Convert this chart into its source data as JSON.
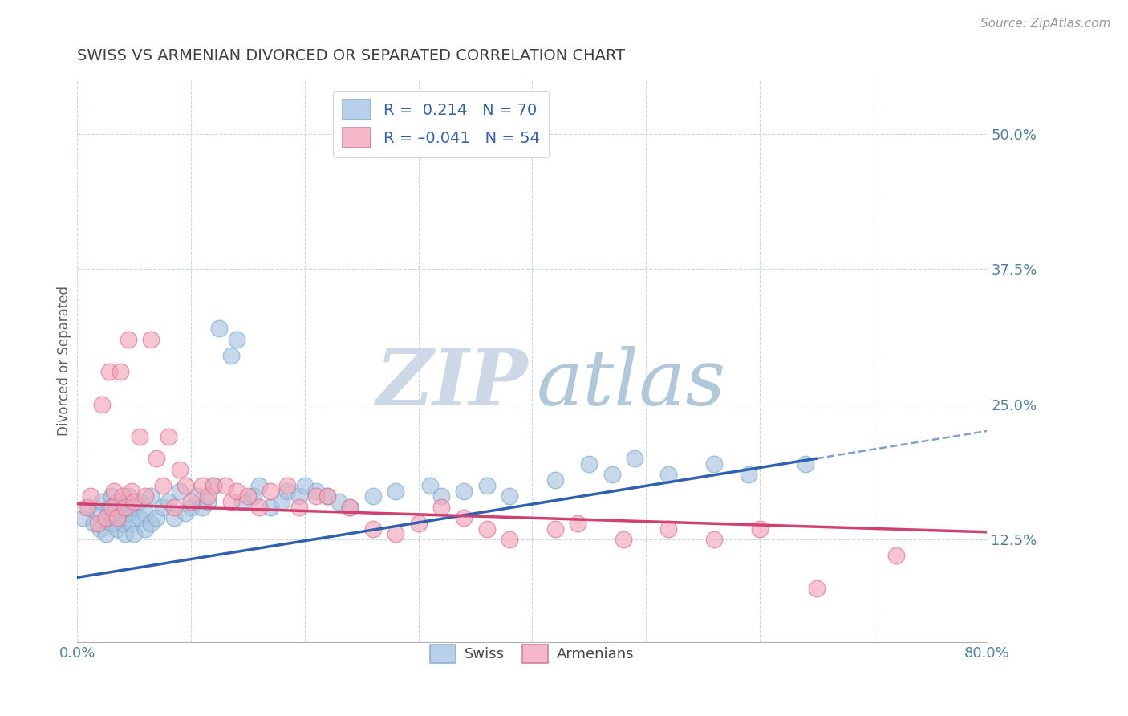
{
  "title": "SWISS VS ARMENIAN DIVORCED OR SEPARATED CORRELATION CHART",
  "source": "Source: ZipAtlas.com",
  "ylabel": "Divorced or Separated",
  "xlim": [
    0.0,
    0.8
  ],
  "ylim": [
    0.03,
    0.55
  ],
  "xtick_positions": [
    0.0,
    0.1,
    0.2,
    0.3,
    0.4,
    0.5,
    0.6,
    0.7,
    0.8
  ],
  "xticklabels": [
    "0.0%",
    "",
    "",
    "",
    "",
    "",
    "",
    "",
    "80.0%"
  ],
  "ytick_positions": [
    0.125,
    0.25,
    0.375,
    0.5
  ],
  "ytick_labels": [
    "12.5%",
    "25.0%",
    "37.5%",
    "50.0%"
  ],
  "swiss_color": "#a8c4e0",
  "swiss_edge_color": "#7aaacf",
  "armenian_color": "#f4a7b9",
  "armenian_edge_color": "#e07090",
  "swiss_line_color": "#3060b0",
  "armenian_line_color": "#d04070",
  "legend_box_swiss_color": "#b8d0ea",
  "legend_box_armenian_color": "#f4b8c8",
  "watermark_zip_color": "#ccd8e8",
  "watermark_atlas_color": "#b0c8d8",
  "background_color": "#ffffff",
  "grid_color": "#c8d8e8",
  "title_color": "#404040",
  "tick_label_color": "#5080a0",
  "swiss_line_start_y": 0.09,
  "swiss_line_end_y": 0.2,
  "swiss_line_end_x": 0.65,
  "armenian_line_start_y": 0.158,
  "armenian_line_end_y": 0.132,
  "swiss_R": 0.214,
  "swiss_N": 70,
  "armenian_R": -0.041,
  "armenian_N": 54,
  "swiss_scatter_x": [
    0.005,
    0.01,
    0.015,
    0.018,
    0.02,
    0.022,
    0.025,
    0.025,
    0.028,
    0.03,
    0.03,
    0.032,
    0.035,
    0.035,
    0.038,
    0.04,
    0.04,
    0.042,
    0.045,
    0.045,
    0.048,
    0.05,
    0.05,
    0.055,
    0.055,
    0.06,
    0.06,
    0.065,
    0.065,
    0.07,
    0.075,
    0.08,
    0.085,
    0.09,
    0.095,
    0.1,
    0.105,
    0.11,
    0.115,
    0.12,
    0.125,
    0.135,
    0.14,
    0.145,
    0.155,
    0.16,
    0.17,
    0.18,
    0.185,
    0.195,
    0.2,
    0.21,
    0.22,
    0.23,
    0.24,
    0.26,
    0.28,
    0.31,
    0.32,
    0.34,
    0.36,
    0.38,
    0.42,
    0.45,
    0.47,
    0.49,
    0.52,
    0.56,
    0.59,
    0.64
  ],
  "swiss_scatter_y": [
    0.145,
    0.155,
    0.14,
    0.15,
    0.135,
    0.16,
    0.145,
    0.13,
    0.155,
    0.14,
    0.165,
    0.15,
    0.135,
    0.16,
    0.145,
    0.14,
    0.155,
    0.13,
    0.15,
    0.165,
    0.14,
    0.155,
    0.13,
    0.145,
    0.16,
    0.135,
    0.15,
    0.14,
    0.165,
    0.145,
    0.155,
    0.16,
    0.145,
    0.17,
    0.15,
    0.155,
    0.165,
    0.155,
    0.16,
    0.175,
    0.32,
    0.295,
    0.31,
    0.16,
    0.165,
    0.175,
    0.155,
    0.16,
    0.17,
    0.165,
    0.175,
    0.17,
    0.165,
    0.16,
    0.155,
    0.165,
    0.17,
    0.175,
    0.165,
    0.17,
    0.175,
    0.165,
    0.18,
    0.195,
    0.185,
    0.2,
    0.185,
    0.195,
    0.185,
    0.195
  ],
  "armenian_scatter_x": [
    0.008,
    0.012,
    0.018,
    0.022,
    0.025,
    0.028,
    0.03,
    0.032,
    0.035,
    0.038,
    0.04,
    0.042,
    0.045,
    0.048,
    0.05,
    0.055,
    0.06,
    0.065,
    0.07,
    0.075,
    0.08,
    0.085,
    0.09,
    0.095,
    0.1,
    0.11,
    0.115,
    0.12,
    0.13,
    0.135,
    0.14,
    0.15,
    0.16,
    0.17,
    0.185,
    0.195,
    0.21,
    0.22,
    0.24,
    0.26,
    0.28,
    0.3,
    0.32,
    0.34,
    0.36,
    0.38,
    0.42,
    0.44,
    0.48,
    0.52,
    0.56,
    0.6,
    0.65,
    0.72
  ],
  "armenian_scatter_y": [
    0.155,
    0.165,
    0.14,
    0.25,
    0.145,
    0.28,
    0.155,
    0.17,
    0.145,
    0.28,
    0.165,
    0.155,
    0.31,
    0.17,
    0.16,
    0.22,
    0.165,
    0.31,
    0.2,
    0.175,
    0.22,
    0.155,
    0.19,
    0.175,
    0.16,
    0.175,
    0.165,
    0.175,
    0.175,
    0.16,
    0.17,
    0.165,
    0.155,
    0.17,
    0.175,
    0.155,
    0.165,
    0.165,
    0.155,
    0.135,
    0.13,
    0.14,
    0.155,
    0.145,
    0.135,
    0.125,
    0.135,
    0.14,
    0.125,
    0.135,
    0.125,
    0.135,
    0.08,
    0.11
  ]
}
